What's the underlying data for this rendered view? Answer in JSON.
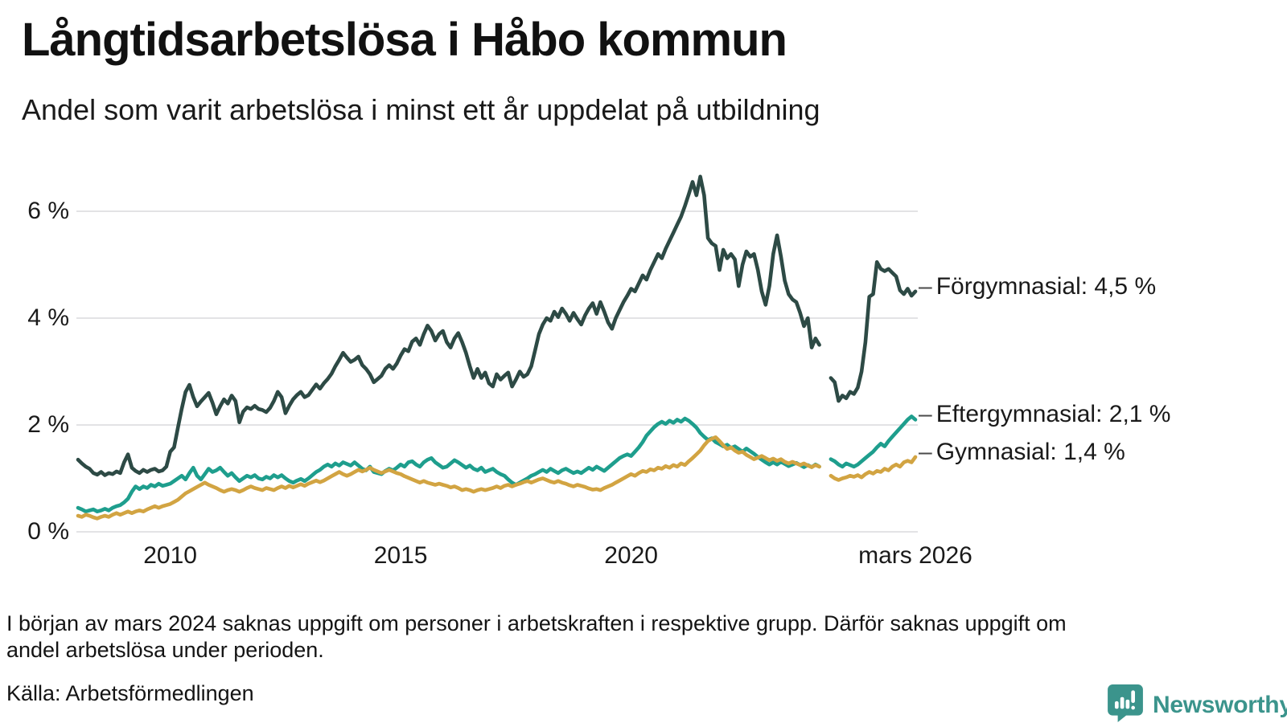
{
  "header": {
    "title": "Långtidsarbetslösa i Håbo kommun",
    "subtitle": "Andel som varit arbetslösa i minst ett år uppdelat på utbildning"
  },
  "footnote": {
    "lines": [
      "I början av mars 2024 saknas uppgift om personer i arbetskraften i respektive grupp. Därför saknas uppgift om",
      "andel arbetslösa under perioden."
    ]
  },
  "source": {
    "text": "Källa: Arbetsförmedlingen"
  },
  "branding": {
    "name": "Newsworthy",
    "color": "#3B948C",
    "icon": "newsworthy-speech-bubble-chart-icon"
  },
  "chart_data": {
    "type": "line",
    "title": "Långtidsarbetslösa i Håbo kommun",
    "subtitle": "Andel som varit arbetslösa i minst ett år uppdelat på utbildning",
    "xlabel": "",
    "ylabel": "",
    "x_start_year": 2008,
    "x_step_months": 1,
    "x_end": "mars 2026",
    "ylim": [
      0,
      6.8
    ],
    "grid": true,
    "grid_color": "#E3E3E5",
    "missing_data_period": "mars–april 2024",
    "y_ticks": [
      {
        "label": "0 %",
        "v": 0
      },
      {
        "label": "2 %",
        "v": 2
      },
      {
        "label": "4 %",
        "v": 4
      },
      {
        "label": "6 %",
        "v": 6
      }
    ],
    "x_ticks": [
      {
        "label": "2010",
        "t": 2010
      },
      {
        "label": "2015",
        "t": 2015
      },
      {
        "label": "2020",
        "t": 2020
      },
      {
        "label": "mars 2026",
        "t": 2026.1667
      }
    ],
    "series": [
      {
        "name": "Eftergymnasial",
        "color": "#1E9E8D",
        "end_value": 2.1,
        "end_label": "Eftergymnasial: 2,1 %",
        "values": [
          0.45,
          0.42,
          0.38,
          0.4,
          0.42,
          0.38,
          0.4,
          0.43,
          0.4,
          0.45,
          0.48,
          0.5,
          0.55,
          0.62,
          0.75,
          0.85,
          0.8,
          0.85,
          0.82,
          0.88,
          0.85,
          0.9,
          0.86,
          0.88,
          0.9,
          0.95,
          1.0,
          1.05,
          0.98,
          1.1,
          1.2,
          1.05,
          0.98,
          1.08,
          1.18,
          1.12,
          1.15,
          1.2,
          1.12,
          1.05,
          1.1,
          1.02,
          0.95,
          1.0,
          1.05,
          1.02,
          1.06,
          1.0,
          0.98,
          1.03,
          1.0,
          1.06,
          1.02,
          1.06,
          1.0,
          0.95,
          0.92,
          0.96,
          0.99,
          0.95,
          1.0,
          1.06,
          1.12,
          1.16,
          1.22,
          1.26,
          1.22,
          1.28,
          1.24,
          1.3,
          1.27,
          1.24,
          1.3,
          1.24,
          1.18,
          1.15,
          1.22,
          1.12,
          1.1,
          1.08,
          1.14,
          1.18,
          1.15,
          1.2,
          1.26,
          1.22,
          1.3,
          1.32,
          1.26,
          1.22,
          1.3,
          1.35,
          1.38,
          1.3,
          1.25,
          1.2,
          1.22,
          1.28,
          1.34,
          1.3,
          1.25,
          1.2,
          1.24,
          1.18,
          1.15,
          1.2,
          1.12,
          1.15,
          1.18,
          1.12,
          1.08,
          1.05,
          0.98,
          0.92,
          0.88,
          0.92,
          0.96,
          1.0,
          1.05,
          1.08,
          1.12,
          1.16,
          1.12,
          1.18,
          1.14,
          1.1,
          1.15,
          1.18,
          1.14,
          1.1,
          1.13,
          1.1,
          1.15,
          1.2,
          1.16,
          1.22,
          1.18,
          1.14,
          1.2,
          1.26,
          1.32,
          1.38,
          1.42,
          1.45,
          1.42,
          1.5,
          1.58,
          1.68,
          1.8,
          1.88,
          1.96,
          2.02,
          2.06,
          2.02,
          2.08,
          2.04,
          2.1,
          2.06,
          2.12,
          2.08,
          2.02,
          1.95,
          1.85,
          1.78,
          1.72,
          1.75,
          1.68,
          1.64,
          1.6,
          1.63,
          1.57,
          1.6,
          1.55,
          1.5,
          1.56,
          1.51,
          1.46,
          1.4,
          1.35,
          1.3,
          1.26,
          1.3,
          1.26,
          1.31,
          1.27,
          1.23,
          1.26,
          1.29,
          1.25,
          1.21,
          1.25,
          1.21,
          1.26,
          1.22,
          null,
          null,
          1.36,
          1.32,
          1.26,
          1.22,
          1.28,
          1.25,
          1.22,
          1.26,
          1.32,
          1.38,
          1.44,
          1.5,
          1.58,
          1.65,
          1.6,
          1.7,
          1.78,
          1.86,
          1.94,
          2.02,
          2.1,
          2.16,
          2.1
        ]
      },
      {
        "name": "Gymnasial",
        "color": "#D2A442",
        "end_value": 1.4,
        "end_label": "Gymnasial: 1,4 %",
        "values": [
          0.3,
          0.28,
          0.32,
          0.3,
          0.27,
          0.25,
          0.28,
          0.3,
          0.28,
          0.32,
          0.35,
          0.32,
          0.35,
          0.38,
          0.35,
          0.38,
          0.4,
          0.38,
          0.42,
          0.45,
          0.48,
          0.45,
          0.48,
          0.5,
          0.52,
          0.56,
          0.6,
          0.66,
          0.72,
          0.76,
          0.8,
          0.84,
          0.88,
          0.92,
          0.88,
          0.85,
          0.82,
          0.78,
          0.75,
          0.78,
          0.8,
          0.78,
          0.75,
          0.78,
          0.82,
          0.85,
          0.82,
          0.8,
          0.78,
          0.82,
          0.8,
          0.78,
          0.82,
          0.85,
          0.82,
          0.86,
          0.83,
          0.86,
          0.89,
          0.86,
          0.9,
          0.93,
          0.96,
          0.93,
          0.96,
          1.0,
          1.04,
          1.08,
          1.12,
          1.08,
          1.05,
          1.08,
          1.12,
          1.16,
          1.13,
          1.16,
          1.2,
          1.16,
          1.13,
          1.1,
          1.13,
          1.16,
          1.13,
          1.1,
          1.08,
          1.04,
          1.01,
          0.98,
          0.95,
          0.92,
          0.95,
          0.92,
          0.9,
          0.88,
          0.9,
          0.88,
          0.86,
          0.83,
          0.85,
          0.82,
          0.78,
          0.8,
          0.78,
          0.75,
          0.78,
          0.8,
          0.78,
          0.8,
          0.82,
          0.85,
          0.82,
          0.86,
          0.88,
          0.85,
          0.88,
          0.9,
          0.93,
          0.95,
          0.92,
          0.95,
          0.98,
          1.0,
          0.97,
          0.94,
          0.92,
          0.95,
          0.92,
          0.9,
          0.87,
          0.85,
          0.88,
          0.86,
          0.84,
          0.81,
          0.79,
          0.8,
          0.78,
          0.82,
          0.85,
          0.88,
          0.92,
          0.96,
          1.0,
          1.04,
          1.08,
          1.05,
          1.1,
          1.14,
          1.12,
          1.17,
          1.15,
          1.2,
          1.18,
          1.23,
          1.2,
          1.25,
          1.22,
          1.28,
          1.25,
          1.32,
          1.38,
          1.45,
          1.52,
          1.62,
          1.7,
          1.74,
          1.77,
          1.7,
          1.62,
          1.55,
          1.58,
          1.52,
          1.48,
          1.5,
          1.44,
          1.4,
          1.36,
          1.39,
          1.42,
          1.38,
          1.34,
          1.37,
          1.33,
          1.36,
          1.31,
          1.28,
          1.31,
          1.28,
          1.25,
          1.28,
          1.24,
          1.21,
          1.25,
          1.22,
          null,
          null,
          1.05,
          1.0,
          0.97,
          1.0,
          1.02,
          1.05,
          1.03,
          1.06,
          1.02,
          1.08,
          1.12,
          1.09,
          1.14,
          1.12,
          1.18,
          1.15,
          1.22,
          1.26,
          1.22,
          1.3,
          1.33,
          1.3,
          1.4
        ]
      },
      {
        "name": "Förgymnasial",
        "color": "#2D4A45",
        "end_value": 4.5,
        "end_label": "Förgymnasial: 4,5 %",
        "values": [
          1.35,
          1.28,
          1.22,
          1.18,
          1.1,
          1.07,
          1.12,
          1.06,
          1.1,
          1.08,
          1.13,
          1.1,
          1.3,
          1.45,
          1.2,
          1.14,
          1.1,
          1.16,
          1.12,
          1.16,
          1.18,
          1.13,
          1.15,
          1.22,
          1.5,
          1.58,
          1.95,
          2.3,
          2.62,
          2.75,
          2.52,
          2.35,
          2.44,
          2.52,
          2.6,
          2.42,
          2.2,
          2.35,
          2.48,
          2.4,
          2.55,
          2.45,
          2.05,
          2.25,
          2.33,
          2.3,
          2.36,
          2.3,
          2.28,
          2.24,
          2.32,
          2.45,
          2.62,
          2.52,
          2.22,
          2.36,
          2.48,
          2.56,
          2.62,
          2.52,
          2.56,
          2.66,
          2.76,
          2.68,
          2.78,
          2.86,
          2.96,
          3.1,
          3.22,
          3.35,
          3.26,
          3.18,
          3.22,
          3.28,
          3.12,
          3.05,
          2.95,
          2.8,
          2.86,
          2.92,
          3.05,
          3.12,
          3.05,
          3.15,
          3.3,
          3.42,
          3.38,
          3.56,
          3.62,
          3.5,
          3.7,
          3.86,
          3.76,
          3.58,
          3.7,
          3.76,
          3.55,
          3.45,
          3.62,
          3.72,
          3.55,
          3.35,
          3.1,
          2.88,
          3.05,
          2.88,
          2.98,
          2.78,
          2.72,
          2.95,
          2.85,
          2.92,
          2.98,
          2.72,
          2.85,
          3.0,
          2.9,
          2.95,
          3.1,
          3.4,
          3.7,
          3.88,
          4.0,
          3.95,
          4.12,
          4.02,
          4.18,
          4.08,
          3.95,
          4.1,
          3.98,
          3.88,
          4.05,
          4.18,
          4.28,
          4.08,
          4.3,
          4.12,
          3.92,
          3.8,
          4.0,
          4.15,
          4.3,
          4.42,
          4.55,
          4.5,
          4.65,
          4.8,
          4.72,
          4.9,
          5.05,
          5.2,
          5.12,
          5.3,
          5.45,
          5.6,
          5.75,
          5.9,
          6.1,
          6.32,
          6.55,
          6.3,
          6.65,
          6.3,
          5.5,
          5.4,
          5.35,
          4.9,
          5.28,
          5.12,
          5.2,
          5.1,
          4.6,
          5.0,
          5.25,
          5.15,
          5.2,
          4.9,
          4.5,
          4.25,
          4.6,
          5.2,
          5.55,
          5.15,
          4.7,
          4.45,
          4.35,
          4.3,
          4.1,
          3.85,
          4.0,
          3.45,
          3.62,
          3.5,
          null,
          null,
          2.88,
          2.8,
          2.45,
          2.55,
          2.5,
          2.62,
          2.58,
          2.7,
          3.0,
          3.55,
          4.4,
          4.45,
          5.05,
          4.92,
          4.88,
          4.92,
          4.85,
          4.78,
          4.52,
          4.45,
          4.55,
          4.42,
          4.5
        ]
      }
    ]
  }
}
